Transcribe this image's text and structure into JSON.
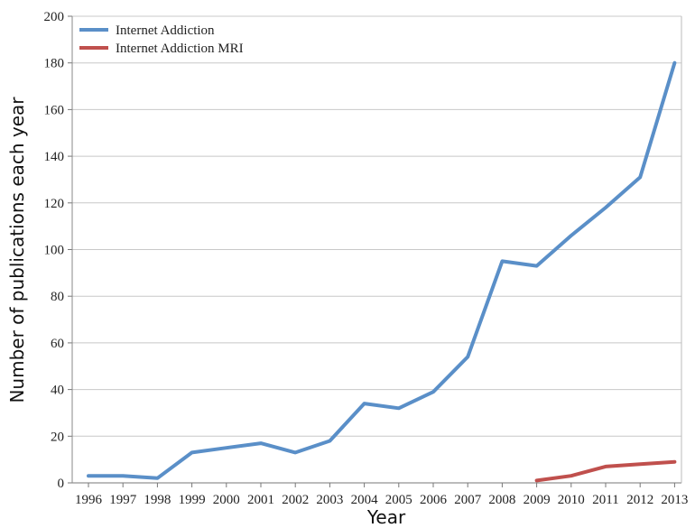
{
  "chart_data": {
    "type": "line",
    "title": "",
    "xlabel": "Year",
    "ylabel": "Number of publications each year",
    "ylim": [
      0,
      200
    ],
    "yticks": [
      0,
      20,
      40,
      60,
      80,
      100,
      120,
      140,
      160,
      180,
      200
    ],
    "categories": [
      "1996",
      "1997",
      "1998",
      "1999",
      "2000",
      "2001",
      "2002",
      "2003",
      "2004",
      "2005",
      "2006",
      "2007",
      "2008",
      "2009",
      "2010",
      "2011",
      "2012",
      "2013"
    ],
    "grid": "horizontal",
    "legend_position": "top-left",
    "series": [
      {
        "name": "Internet Addiction",
        "color": "#5a8fc8",
        "values": [
          3,
          3,
          2,
          13,
          15,
          17,
          13,
          18,
          34,
          32,
          39,
          54,
          95,
          93,
          106,
          118,
          131,
          180
        ]
      },
      {
        "name": "Internet Addiction MRI",
        "color": "#c0504d",
        "values": [
          null,
          null,
          null,
          null,
          null,
          null,
          null,
          null,
          null,
          null,
          null,
          null,
          null,
          1,
          3,
          7,
          8,
          9
        ]
      }
    ]
  }
}
